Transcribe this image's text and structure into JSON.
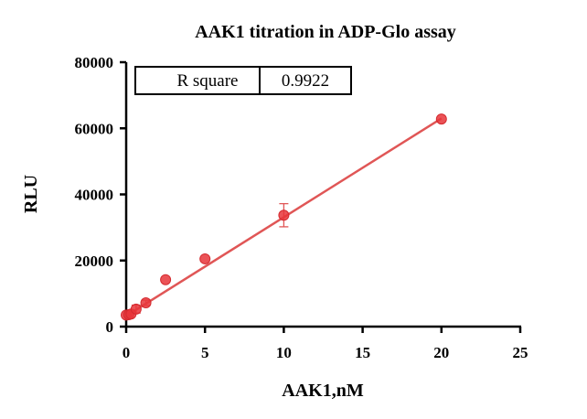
{
  "chart_data": {
    "type": "scatter",
    "title": "AAK1 titration in ADP-Glo assay",
    "xlabel": "AAK1,nM",
    "ylabel": "RLU",
    "xlim": [
      0,
      25
    ],
    "ylim": [
      0,
      80000
    ],
    "x_ticks": [
      "0",
      "5",
      "10",
      "15",
      "20",
      "25"
    ],
    "y_ticks": [
      "0",
      "20000",
      "40000",
      "60000",
      "80000"
    ],
    "x_tick_values": [
      0,
      5,
      10,
      15,
      20,
      25
    ],
    "y_tick_values": [
      0,
      20000,
      40000,
      60000,
      80000
    ],
    "grid": false,
    "points": [
      {
        "x": 0,
        "y": 3500,
        "err": 0
      },
      {
        "x": 0.16,
        "y": 3600,
        "err": 0
      },
      {
        "x": 0.31,
        "y": 3800,
        "err": 0
      },
      {
        "x": 0.63,
        "y": 5300,
        "err": 1200
      },
      {
        "x": 1.25,
        "y": 7200,
        "err": 800
      },
      {
        "x": 2.5,
        "y": 14200,
        "err": 0
      },
      {
        "x": 5,
        "y": 20500,
        "err": 0
      },
      {
        "x": 10,
        "y": 33700,
        "err": 3500
      },
      {
        "x": 20,
        "y": 62800,
        "err": 0
      }
    ],
    "fit_line": {
      "x": [
        0,
        20
      ],
      "y": [
        3200,
        63000
      ]
    },
    "r_square": {
      "label": "R square",
      "value": "0.9922"
    },
    "marker_color": "#e8353a",
    "line_color": "#e05656"
  }
}
